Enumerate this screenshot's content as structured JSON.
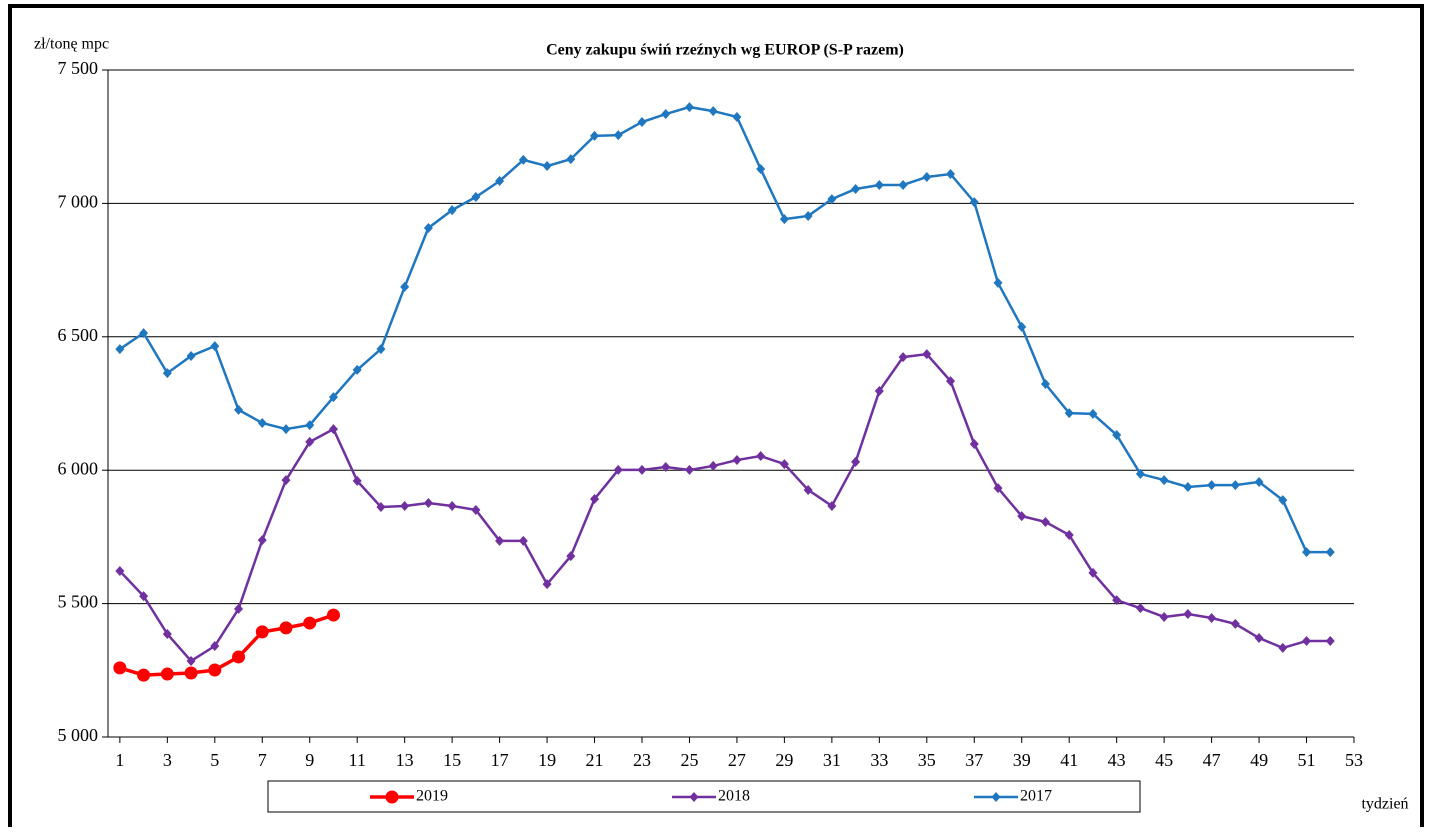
{
  "chart_data": {
    "type": "line",
    "title": "Ceny zakupu świń rzeźnych  wg EUROP (S-P razem)",
    "y_label": "zł/tonę  mpc",
    "x_label": "tydzień",
    "x": [
      1,
      2,
      3,
      4,
      5,
      6,
      7,
      8,
      9,
      10,
      11,
      12,
      13,
      14,
      15,
      16,
      17,
      18,
      19,
      20,
      21,
      22,
      23,
      24,
      25,
      26,
      27,
      28,
      29,
      30,
      31,
      32,
      33,
      34,
      35,
      36,
      37,
      38,
      39,
      40,
      41,
      42,
      43,
      44,
      45,
      46,
      47,
      48,
      49,
      50,
      51,
      52
    ],
    "xlim": [
      0.5,
      53
    ],
    "xticks": [
      1,
      3,
      5,
      7,
      9,
      11,
      13,
      15,
      17,
      19,
      21,
      23,
      25,
      27,
      29,
      31,
      33,
      35,
      37,
      39,
      41,
      43,
      45,
      47,
      49,
      51,
      53
    ],
    "ylim": [
      5000,
      7500
    ],
    "yticks": [
      {
        "value": 5000,
        "label": "5 000"
      },
      {
        "value": 5500,
        "label": "5 500"
      },
      {
        "value": 6000,
        "label": "6 000"
      },
      {
        "value": 6500,
        "label": "6 500"
      },
      {
        "value": 7000,
        "label": "7 000"
      },
      {
        "value": 7500,
        "label": "7 500"
      }
    ],
    "grid": true,
    "legend": "bottom",
    "series": [
      {
        "name": "2019",
        "color": "#ff0000",
        "marker": "circle",
        "values": [
          5259,
          5232,
          5236,
          5240,
          5251,
          5300,
          5394,
          5409,
          5427,
          5457,
          null,
          null,
          null,
          null,
          null,
          null,
          null,
          null,
          null,
          null,
          null,
          null,
          null,
          null,
          null,
          null,
          null,
          null,
          null,
          null,
          null,
          null,
          null,
          null,
          null,
          null,
          null,
          null,
          null,
          null,
          null,
          null,
          null,
          null,
          null,
          null,
          null,
          null,
          null,
          null,
          null,
          null
        ]
      },
      {
        "name": "2018",
        "color": "#7030a0",
        "marker": "diamond",
        "values": [
          5622,
          5528,
          5386,
          5285,
          5341,
          5480,
          5738,
          5963,
          6106,
          6154,
          5960,
          5862,
          5866,
          5877,
          5866,
          5851,
          5735,
          5735,
          5573,
          5678,
          5892,
          6001,
          6001,
          6012,
          6001,
          6016,
          6038,
          6053,
          6023,
          5926,
          5866,
          6031,
          6297,
          6424,
          6435,
          6334,
          6098,
          5933,
          5828,
          5806,
          5757,
          5615,
          5513,
          5483,
          5450,
          5461,
          5446,
          5424,
          5371,
          5334,
          5360,
          5360
        ]
      },
      {
        "name": "2017",
        "color": "#1f77c0",
        "marker": "diamond",
        "values": [
          6454,
          6514,
          6364,
          6428,
          6465,
          6226,
          6177,
          6154,
          6169,
          6274,
          6376,
          6454,
          6687,
          6908,
          6975,
          7024,
          7084,
          7163,
          7140,
          7166,
          7253,
          7256,
          7305,
          7335,
          7361,
          7346,
          7324,
          7129,
          6941,
          6953,
          7016,
          7054,
          7069,
          7069,
          7099,
          7110,
          7005,
          6702,
          6537,
          6323,
          6214,
          6211,
          6132,
          5986,
          5963,
          5937,
          5944,
          5944,
          5956,
          5888,
          5693,
          5693
        ]
      }
    ]
  }
}
